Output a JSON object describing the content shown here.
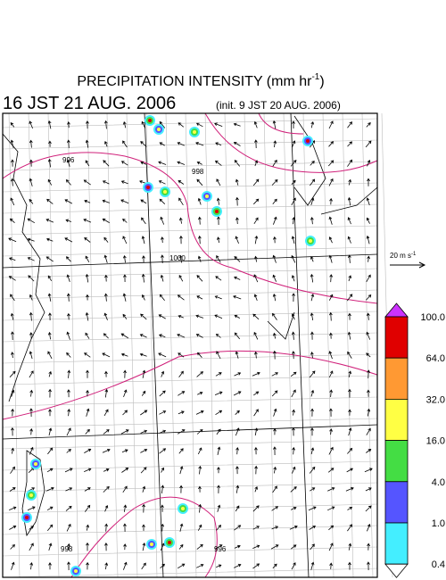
{
  "header": {
    "title": "PRECIPITATION INTENSITY (mm hr",
    "title_exponent": "-1",
    "title_close": ")",
    "valid_time": "16 JST 21 AUG. 2006",
    "init_time": "(init. 9 JST 20 AUG. 2006)"
  },
  "wind_reference": {
    "label": "20 m s",
    "exponent": "-1"
  },
  "colorbar": {
    "labels": [
      "100.0",
      "64.0",
      "32.0",
      "16.0",
      "4.0",
      "1.0",
      "0.4"
    ],
    "colors": [
      "#e00000",
      "#ff9933",
      "#ffff44",
      "#44dd44",
      "#5555ff",
      "#44eeff"
    ],
    "over_color": "#cc33ff",
    "under_color": "#ffffff"
  },
  "contour_labels": [
    "996",
    "998",
    "1000",
    "998",
    "996"
  ]
}
